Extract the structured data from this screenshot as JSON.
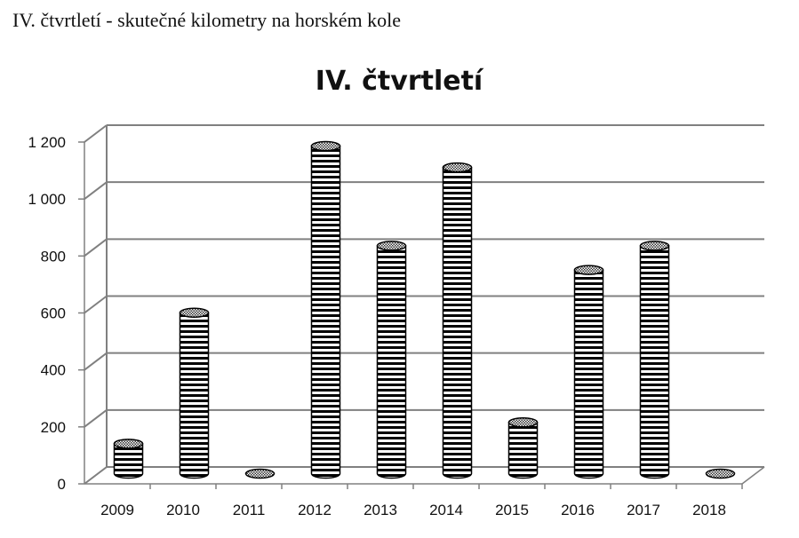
{
  "page": {
    "heading": "IV. čtvrtletí - skutečné kilometry na horském kole"
  },
  "chart_data": {
    "type": "bar",
    "style": "3d-cylinder",
    "title": "IV. čtvrtletí",
    "xlabel": "",
    "ylabel": "",
    "categories": [
      "2009",
      "2010",
      "2011",
      "2012",
      "2013",
      "2014",
      "2015",
      "2016",
      "2017",
      "2018"
    ],
    "values": [
      105,
      565,
      0,
      1150,
      800,
      1075,
      180,
      715,
      800,
      0
    ],
    "ylim": [
      0,
      1200
    ],
    "yticks": [
      0,
      200,
      400,
      600,
      800,
      1000,
      1200
    ],
    "ytick_labels": [
      "0",
      "200",
      "400",
      "600",
      "800",
      "1 000",
      "1 200"
    ],
    "grid": true,
    "legend": "none",
    "colors": {
      "stripe_dark": "#000000",
      "stripe_light": "#ffffff",
      "grid": "#808080",
      "text": "#111111"
    }
  }
}
